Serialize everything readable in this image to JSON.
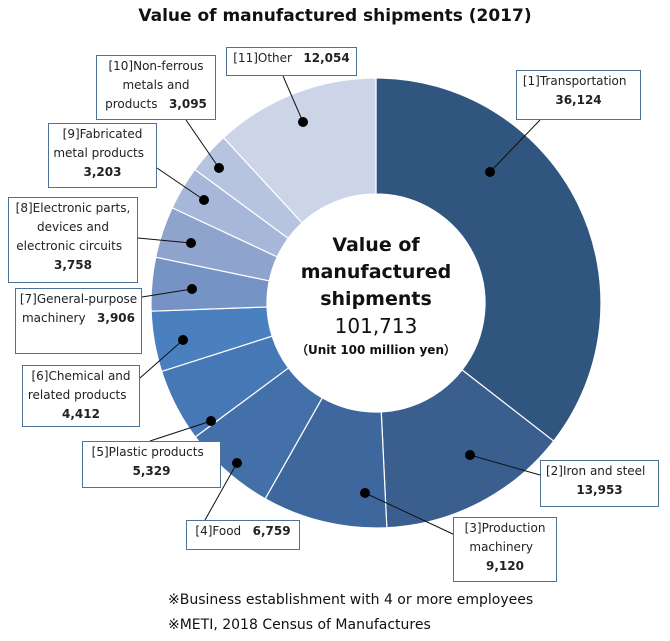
{
  "chart_data": {
    "type": "pie",
    "title": "Value of manufactured shipments (2017)",
    "donut": true,
    "center": {
      "title": "Value of manufactured shipments",
      "total": "101,713",
      "unit": "（Unit 100 million yen）"
    },
    "slices": [
      {
        "id": "[1]",
        "name": "Transportation",
        "value": 36124,
        "value_label": "36,124",
        "color": "#30557f"
      },
      {
        "id": "[2]",
        "name": "Iron and steel",
        "value": 13953,
        "value_label": "13,953",
        "color": "#3a5f8f"
      },
      {
        "id": "[3]",
        "name": "Production machinery",
        "value": 9120,
        "value_label": "9,120",
        "color": "#3e679d"
      },
      {
        "id": "[4]",
        "name": "Food",
        "value": 6759,
        "value_label": "6,759",
        "color": "#4470aa"
      },
      {
        "id": "[5]",
        "name": "Plastic products",
        "value": 5329,
        "value_label": "5,329",
        "color": "#4778b6"
      },
      {
        "id": "[6]",
        "name": "Chemical and related products",
        "value": 4412,
        "value_label": "4,412",
        "color": "#4b80c0"
      },
      {
        "id": "[7]",
        "name": "General-purpose machinery",
        "value": 3906,
        "value_label": "3,906",
        "color": "#7594c5"
      },
      {
        "id": "[8]",
        "name": "Electronic parts, devices and electronic circuits",
        "value": 3758,
        "value_label": "3,758",
        "color": "#8ea4cd"
      },
      {
        "id": "[9]",
        "name": "Fabricated metal products",
        "value": 3203,
        "value_label": "3,203",
        "color": "#a7b7d9"
      },
      {
        "id": "[10]",
        "name": "Non-ferrous metals and products",
        "value": 3095,
        "value_label": "3,095",
        "color": "#b7c4e0"
      },
      {
        "id": "[11]",
        "name": "Other",
        "value": 12054,
        "value_label": "12,054",
        "color": "#ccd5e8"
      }
    ]
  },
  "notes": [
    "※Business establishment with 4 or more employees",
    "※METI, 2018 Census of Manufactures"
  ]
}
